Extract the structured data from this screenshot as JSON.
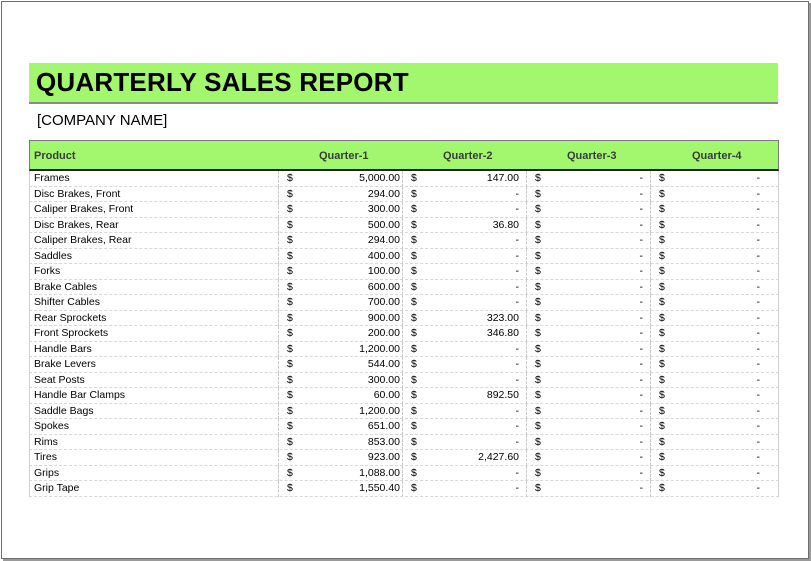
{
  "title": "QUARTERLY SALES REPORT",
  "company": "[COMPANY NAME]",
  "headers": {
    "product": "Product",
    "q1": "Quarter-1",
    "q2": "Quarter-2",
    "q3": "Quarter-3",
    "q4": "Quarter-4"
  },
  "currency": "$",
  "colors": {
    "accent_green": "#a3f76f"
  },
  "rows": [
    {
      "product": "Frames",
      "q1": "5,000.00",
      "q2": "147.00",
      "q3": "-",
      "q4": "-"
    },
    {
      "product": "Disc Brakes, Front",
      "q1": "294.00",
      "q2": "-",
      "q3": "-",
      "q4": "-"
    },
    {
      "product": "Caliper Brakes, Front",
      "q1": "300.00",
      "q2": "-",
      "q3": "-",
      "q4": "-"
    },
    {
      "product": "Disc Brakes, Rear",
      "q1": "500.00",
      "q2": "36.80",
      "q3": "-",
      "q4": "-"
    },
    {
      "product": "Caliper Brakes, Rear",
      "q1": "294.00",
      "q2": "-",
      "q3": "-",
      "q4": "-"
    },
    {
      "product": "Saddles",
      "q1": "400.00",
      "q2": "-",
      "q3": "-",
      "q4": "-"
    },
    {
      "product": "Forks",
      "q1": "100.00",
      "q2": "-",
      "q3": "-",
      "q4": "-"
    },
    {
      "product": "Brake Cables",
      "q1": "600.00",
      "q2": "-",
      "q3": "-",
      "q4": "-"
    },
    {
      "product": "Shifter Cables",
      "q1": "700.00",
      "q2": "-",
      "q3": "-",
      "q4": "-"
    },
    {
      "product": "Rear Sprockets",
      "q1": "900.00",
      "q2": "323.00",
      "q3": "-",
      "q4": "-"
    },
    {
      "product": "Front Sprockets",
      "q1": "200.00",
      "q2": "346.80",
      "q3": "-",
      "q4": "-"
    },
    {
      "product": "Handle Bars",
      "q1": "1,200.00",
      "q2": "-",
      "q3": "-",
      "q4": "-"
    },
    {
      "product": "Brake Levers",
      "q1": "544.00",
      "q2": "-",
      "q3": "-",
      "q4": "-"
    },
    {
      "product": "Seat Posts",
      "q1": "300.00",
      "q2": "-",
      "q3": "-",
      "q4": "-"
    },
    {
      "product": "Handle Bar Clamps",
      "q1": "60.00",
      "q2": "892.50",
      "q3": "-",
      "q4": "-"
    },
    {
      "product": "Saddle Bags",
      "q1": "1,200.00",
      "q2": "-",
      "q3": "-",
      "q4": "-"
    },
    {
      "product": "Spokes",
      "q1": "651.00",
      "q2": "-",
      "q3": "-",
      "q4": "-"
    },
    {
      "product": "Rims",
      "q1": "853.00",
      "q2": "-",
      "q3": "-",
      "q4": "-"
    },
    {
      "product": "Tires",
      "q1": "923.00",
      "q2": "2,427.60",
      "q3": "-",
      "q4": "-"
    },
    {
      "product": "Grips",
      "q1": "1,088.00",
      "q2": "-",
      "q3": "-",
      "q4": "-"
    },
    {
      "product": "Grip Tape",
      "q1": "1,550.40",
      "q2": "-",
      "q3": "-",
      "q4": "-"
    }
  ]
}
